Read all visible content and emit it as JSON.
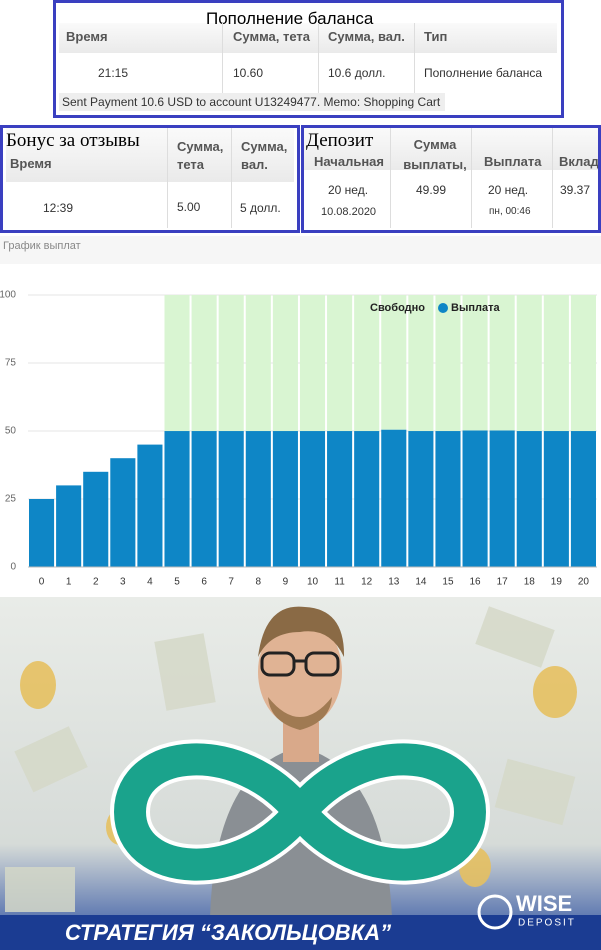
{
  "balance_table": {
    "title": "Пополнение баланса",
    "headers": [
      "Время",
      "Сумма, тета",
      "Сумма, вал.",
      "Тип"
    ],
    "rows": [
      [
        "21:15",
        "10.60",
        "10.6 долл.",
        "Пополнение баланса"
      ]
    ],
    "note": "Sent Payment 10.6 USD to account U13249477. Memo: Shopping Cart"
  },
  "bonus_table": {
    "title": "Бонус за отзывы",
    "headers": [
      "Время",
      "Сумма, тета",
      "Сумма, вал."
    ],
    "rows": [
      [
        "12:39",
        "5.00",
        "5 долл."
      ]
    ]
  },
  "deposit_table": {
    "title": "Депозит",
    "headers": [
      "Начальная",
      "Сумма выплаты,",
      "Выплата",
      "Вклад"
    ],
    "rows": [
      [
        [
          "20 нед.",
          "10.08.2020"
        ],
        [
          "49.99"
        ],
        [
          "20 нед.",
          "пн, 00:46"
        ],
        [
          "39.37"
        ]
      ]
    ]
  },
  "chart_data": {
    "type": "bar",
    "title": "График выплат",
    "stacked": true,
    "categories": [
      "0",
      "1",
      "2",
      "3",
      "4",
      "5",
      "6",
      "7",
      "8",
      "9",
      "10",
      "11",
      "12",
      "13",
      "14",
      "15",
      "16",
      "17",
      "18",
      "19",
      "20"
    ],
    "series": [
      {
        "name": "Выплата",
        "color": "#0e86c6",
        "values": [
          25,
          30,
          35,
          40,
          45,
          49.99,
          49.99,
          49.99,
          49.99,
          49.99,
          49.99,
          49.99,
          49.99,
          50.5,
          49.99,
          49.99,
          50.2,
          50.2,
          49.99,
          49.99,
          49.99
        ]
      },
      {
        "name": "Свободно",
        "color": "#d9f5d2",
        "values": [
          null,
          null,
          null,
          null,
          null,
          50.01,
          50.01,
          50.01,
          50.01,
          50.01,
          50.01,
          50.01,
          50.01,
          49.5,
          50.01,
          50.01,
          49.8,
          49.8,
          50.01,
          50.01,
          50.01
        ]
      }
    ],
    "legend_order": [
      "Свободно",
      "Выплата"
    ],
    "ylim": [
      0,
      100
    ],
    "yticks": [
      0,
      25,
      50,
      75,
      100
    ],
    "grid": true
  },
  "banner": {
    "headline": "СТРАТЕГИЯ “ЗАКОЛЬЦОВКА”",
    "logo_top": "WISE",
    "logo_bottom": "DEPOSIT"
  }
}
